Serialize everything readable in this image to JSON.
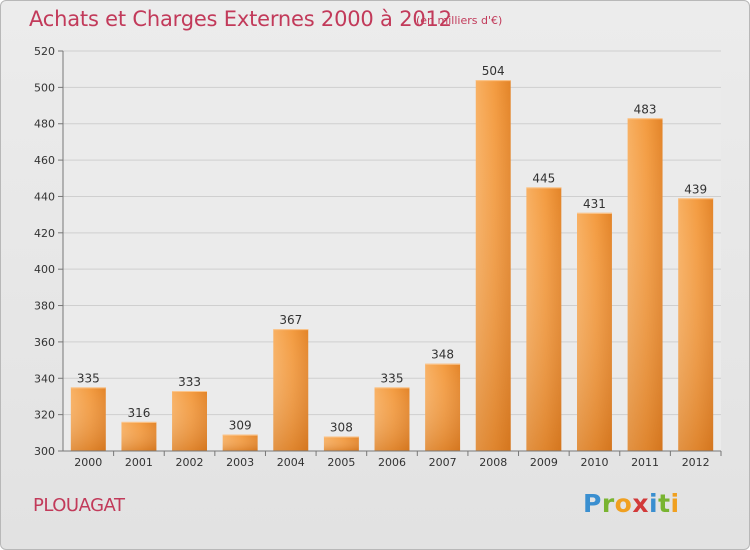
{
  "header": {
    "title": "Achats et Charges Externes 2000 à 2012",
    "subtitle": "(en milliers d'€)"
  },
  "footer": {
    "place": "PLOUAGAT",
    "brand": {
      "p": "P",
      "r": "r",
      "o": "o",
      "x": "x",
      "i1": "i",
      "t": "t",
      "i2": "i"
    }
  },
  "chart_data": {
    "type": "bar",
    "title": "Achats et Charges Externes 2000 à 2012",
    "subtitle": "(en milliers d'€)",
    "categories": [
      "2000",
      "2001",
      "2002",
      "2003",
      "2004",
      "2005",
      "2006",
      "2007",
      "2008",
      "2009",
      "2010",
      "2011",
      "2012"
    ],
    "values": [
      335,
      316,
      333,
      309,
      367,
      308,
      335,
      348,
      504,
      445,
      431,
      483,
      439
    ],
    "ylim": [
      300,
      520
    ],
    "yticks": [
      300,
      320,
      340,
      360,
      380,
      400,
      420,
      440,
      460,
      480,
      500,
      520
    ],
    "grid": true,
    "colors": {
      "bar_light": "#f7a54f",
      "bar_dark": "#e07e22",
      "text": "#333333",
      "title": "#c23a5a"
    }
  }
}
